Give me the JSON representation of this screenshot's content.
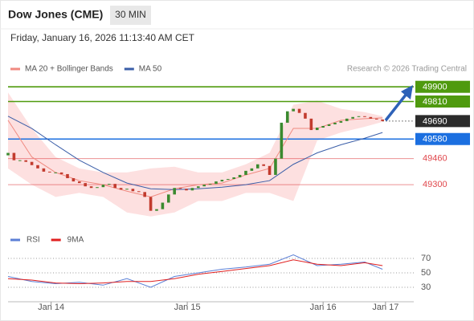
{
  "chart_data": [
    {
      "type": "candlestick",
      "title": "Dow Jones (CME)",
      "timeframe": "30 MIN",
      "subtitle": "Friday, January 16, 2026 11:13:40 AM CET",
      "credit": "Research © 2026 Trading Central",
      "up_color": "#3b8a2f",
      "down_color": "#c23b2e",
      "x": [
        0,
        2,
        4,
        6,
        8,
        10,
        12,
        14,
        16,
        18,
        20,
        22,
        24,
        26,
        28,
        30,
        32,
        34,
        36,
        38,
        40,
        42,
        44,
        46,
        48,
        50,
        52,
        54,
        56,
        58,
        60,
        62,
        64,
        66,
        68,
        70,
        72,
        74,
        76,
        78,
        80,
        82,
        84,
        86,
        88,
        90,
        92,
        94,
        96,
        98,
        100,
        102,
        104,
        106,
        108,
        110,
        112,
        114,
        116,
        118,
        120,
        122,
        124,
        126
      ],
      "open": [
        49480,
        49495,
        49450,
        49450,
        49440,
        49420,
        49400,
        49380,
        49375,
        49375,
        49365,
        49340,
        49320,
        49310,
        49290,
        49280,
        49285,
        49300,
        49305,
        49280,
        49270,
        49275,
        49260,
        49255,
        49225,
        49140,
        49150,
        49190,
        49240,
        49280,
        49275,
        49265,
        49280,
        49290,
        49300,
        49305,
        49320,
        49330,
        49335,
        49345,
        49360,
        49385,
        49400,
        49425,
        49415,
        49360,
        49460,
        49680,
        49750,
        49765,
        49740,
        49705,
        49635,
        49650,
        49660,
        49670,
        49680,
        49690,
        49705,
        49715,
        49720,
        49715,
        49705,
        49700
      ],
      "close": [
        49495,
        49450,
        49450,
        49440,
        49420,
        49400,
        49380,
        49375,
        49375,
        49365,
        49340,
        49320,
        49310,
        49290,
        49280,
        49285,
        49300,
        49305,
        49280,
        49270,
        49275,
        49260,
        49255,
        49225,
        49140,
        49150,
        49190,
        49240,
        49280,
        49275,
        49265,
        49280,
        49290,
        49300,
        49305,
        49320,
        49330,
        49335,
        49345,
        49360,
        49385,
        49400,
        49425,
        49415,
        49360,
        49460,
        49680,
        49750,
        49765,
        49740,
        49705,
        49635,
        49650,
        49660,
        49670,
        49680,
        49690,
        49705,
        49715,
        49720,
        49715,
        49705,
        49700,
        49690
      ],
      "overlays": [
        {
          "name": "MA 20 + Bollinger Bands",
          "color": "#f08a80",
          "band_color": "#fde0e0",
          "x": [
            0,
            8,
            16,
            24,
            32,
            40,
            48,
            56,
            64,
            72,
            80,
            88,
            96,
            104,
            112,
            120,
            126
          ],
          "values": [
            49695,
            49470,
            49375,
            49325,
            49300,
            49260,
            49225,
            49275,
            49300,
            49310,
            49360,
            49400,
            49645,
            49645,
            49695,
            49705,
            49710
          ],
          "upper": [
            49865,
            49645,
            49470,
            49400,
            49375,
            49375,
            49400,
            49410,
            49375,
            49375,
            49425,
            49495,
            49790,
            49815,
            49765,
            49745,
            49720
          ],
          "lower": [
            49400,
            49300,
            49225,
            49250,
            49225,
            49130,
            49105,
            49130,
            49200,
            49200,
            49250,
            49250,
            49200,
            49570,
            49620,
            49655,
            49685
          ]
        },
        {
          "name": "MA 50",
          "color": "#3a5ea8",
          "x": [
            0,
            8,
            16,
            24,
            32,
            40,
            48,
            56,
            64,
            72,
            80,
            88,
            96,
            104,
            112,
            120,
            126
          ],
          "values": [
            49720,
            49645,
            49545,
            49450,
            49375,
            49310,
            49275,
            49270,
            49275,
            49285,
            49300,
            49325,
            49425,
            49495,
            49545,
            49585,
            49620
          ]
        }
      ],
      "levels": [
        {
          "value": 49900,
          "color": "#4f9a0e",
          "style": "box"
        },
        {
          "value": 49810,
          "color": "#4f9a0e",
          "style": "box"
        },
        {
          "value": 49690,
          "color": "#2b2b2b",
          "style": "current"
        },
        {
          "value": 49580,
          "color": "#1b6fe0",
          "style": "box"
        },
        {
          "value": 49460,
          "color": "#e0474c",
          "style": "text"
        },
        {
          "value": 49300,
          "color": "#e0474c",
          "style": "text"
        }
      ],
      "xlim": [
        0,
        136.5
      ],
      "ylim": [
        49040,
        49960
      ]
    },
    {
      "type": "line",
      "x": [
        0,
        8,
        16,
        24,
        32,
        40,
        48,
        56,
        64,
        72,
        80,
        88,
        96,
        104,
        112,
        120,
        126
      ],
      "series": [
        {
          "name": "RSI",
          "color": "#5b7fd6",
          "values": [
            45,
            38,
            35,
            37,
            33,
            42,
            30,
            45,
            50,
            55,
            58,
            62,
            75,
            60,
            62,
            65,
            55
          ]
        },
        {
          "name": "9MA",
          "color": "#e02020",
          "values": [
            42,
            40,
            36,
            35,
            36,
            38,
            38,
            42,
            48,
            52,
            56,
            60,
            68,
            62,
            60,
            64,
            60
          ]
        }
      ],
      "xlim": [
        0,
        136.5
      ],
      "ylim": [
        10,
        85
      ],
      "yticks": [
        30,
        50,
        70
      ],
      "grid": true,
      "xticks": [
        {
          "value": 14.5,
          "label": "Jan 14"
        },
        {
          "value": 60.3,
          "label": "Jan 15"
        },
        {
          "value": 106,
          "label": "Jan 16"
        },
        {
          "value": 127,
          "label": "Jan 17"
        }
      ]
    }
  ]
}
